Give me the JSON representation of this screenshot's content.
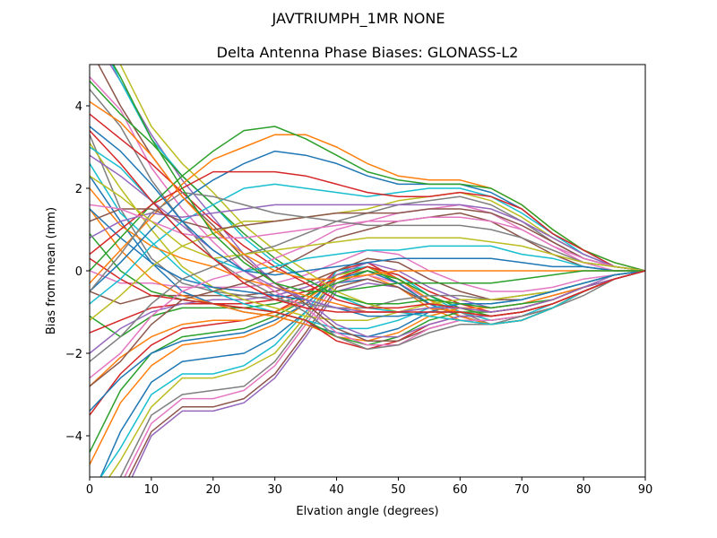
{
  "figure": {
    "suptitle": "JAVTRIUMPH_1MR  NONE"
  },
  "chart_data": {
    "type": "line",
    "title": "Delta Antenna Phase Biases: GLONASS-L2",
    "xlabel": "Elvation angle (degrees)",
    "ylabel": "Bias from mean (mm)",
    "xlim": [
      0,
      90
    ],
    "ylim": [
      -5,
      5
    ],
    "xticks": [
      0,
      10,
      20,
      30,
      40,
      50,
      60,
      70,
      80,
      90
    ],
    "yticks": [
      -4,
      -2,
      0,
      2,
      4
    ],
    "xtick_labels": [
      "0",
      "10",
      "20",
      "30",
      "40",
      "50",
      "60",
      "70",
      "80",
      "90"
    ],
    "ytick_labels": [
      "−4",
      "−2",
      "0",
      "2",
      "4"
    ],
    "grid": false,
    "legend": "none",
    "x": [
      0,
      5,
      10,
      15,
      20,
      25,
      30,
      35,
      40,
      45,
      50,
      55,
      60,
      65,
      70,
      75,
      80,
      85,
      90
    ],
    "colors": [
      "#1f77b4",
      "#ff7f0e",
      "#2ca02c",
      "#d62728",
      "#9467bd",
      "#8c564b",
      "#e377c2",
      "#7f7f7f",
      "#bcbd22",
      "#17becf"
    ],
    "series": [
      {
        "values": [
          -5.6,
          -3.9,
          -2.7,
          -2.2,
          -2.1,
          -2.0,
          -1.6,
          -1.0,
          -0.3,
          -0.2,
          -0.4,
          -0.8,
          -1.1,
          -1.3,
          -1.2,
          -0.9,
          -0.5,
          -0.2,
          0
        ]
      },
      {
        "values": [
          -4.7,
          -3.2,
          -2.3,
          -1.8,
          -1.7,
          -1.6,
          -1.3,
          -0.8,
          -0.2,
          -0.1,
          -0.4,
          -0.9,
          -1.2,
          -1.3,
          -1.2,
          -0.9,
          -0.5,
          -0.2,
          0
        ]
      },
      {
        "values": [
          -4.4,
          -2.9,
          -2.0,
          -1.6,
          -1.5,
          -1.4,
          -1.1,
          -0.7,
          -0.1,
          0.1,
          -0.3,
          -0.8,
          -1.1,
          -1.3,
          -1.2,
          -0.9,
          -0.5,
          -0.2,
          0
        ]
      },
      {
        "values": [
          -3.5,
          -2.5,
          -1.8,
          -1.4,
          -1.3,
          -1.2,
          -1.0,
          -0.6,
          0.0,
          0.2,
          -0.2,
          -0.7,
          -1.1,
          -1.3,
          -1.2,
          -0.9,
          -0.5,
          -0.2,
          0
        ]
      },
      {
        "values": [
          -6.6,
          -5.6,
          -4.0,
          -3.4,
          -3.4,
          -3.2,
          -2.6,
          -1.6,
          -0.5,
          -0.3,
          -0.4,
          -0.8,
          -1.1,
          -1.3,
          -1.2,
          -0.9,
          -0.5,
          -0.2,
          0
        ]
      },
      {
        "values": [
          -6.4,
          -5.4,
          -3.9,
          -3.3,
          -3.3,
          -3.1,
          -2.5,
          -1.5,
          -0.4,
          -0.2,
          -0.4,
          -0.8,
          -1.1,
          -1.3,
          -1.2,
          -0.9,
          -0.5,
          -0.2,
          0
        ]
      },
      {
        "values": [
          -6.2,
          -5.2,
          -3.7,
          -3.1,
          -3.1,
          -2.9,
          -2.3,
          -1.3,
          -0.3,
          -0.1,
          -0.3,
          -0.7,
          -1.1,
          -1.3,
          -1.2,
          -0.9,
          -0.5,
          -0.2,
          0
        ]
      },
      {
        "values": [
          -6.0,
          -5.0,
          -3.5,
          -3.0,
          -2.9,
          -2.8,
          -2.2,
          -1.2,
          -0.2,
          0.0,
          -0.2,
          -0.7,
          -1.0,
          -1.3,
          -1.2,
          -0.9,
          -0.5,
          -0.2,
          0
        ]
      },
      {
        "values": [
          -5.7,
          -4.6,
          -3.3,
          -2.6,
          -2.6,
          -2.4,
          -2.0,
          -1.1,
          -0.1,
          0.0,
          -0.2,
          -0.7,
          -1.0,
          -1.2,
          -1.1,
          -0.9,
          -0.5,
          -0.2,
          0
        ]
      },
      {
        "values": [
          -5.4,
          -4.3,
          -3.0,
          -2.5,
          -2.5,
          -2.3,
          -1.8,
          -1.0,
          0.0,
          0.1,
          -0.1,
          -0.6,
          -1.0,
          -1.2,
          -1.1,
          -0.8,
          -0.5,
          -0.2,
          0
        ]
      },
      {
        "values": [
          -3.4,
          -2.6,
          -2.0,
          -1.7,
          -1.6,
          -1.5,
          -1.2,
          -0.8,
          -0.2,
          0.0,
          -0.3,
          -0.8,
          -1.1,
          -1.3,
          -1.2,
          -0.9,
          -0.5,
          -0.2,
          0
        ]
      },
      {
        "values": [
          -2.8,
          -2.1,
          -1.6,
          -1.3,
          -1.2,
          -1.2,
          -1.0,
          -0.7,
          -0.2,
          0.1,
          -0.2,
          -0.7,
          -1.1,
          -1.3,
          -1.2,
          -0.9,
          -0.5,
          -0.2,
          0
        ]
      },
      {
        "values": [
          -1.1,
          -1.6,
          -1.1,
          -0.9,
          -0.9,
          -0.9,
          -0.8,
          -0.6,
          -0.3,
          0.0,
          -0.2,
          -0.6,
          -0.9,
          -1.1,
          -1.0,
          -0.8,
          -0.5,
          -0.2,
          0
        ]
      },
      {
        "values": [
          -1.5,
          -1.2,
          -0.9,
          -0.8,
          -0.8,
          -0.8,
          -0.7,
          -0.5,
          -0.2,
          0.1,
          -0.1,
          -0.5,
          -0.8,
          -1.0,
          -0.9,
          -0.7,
          -0.4,
          -0.2,
          0
        ]
      },
      {
        "values": [
          -2.0,
          -1.4,
          -1.0,
          -0.8,
          -0.7,
          -0.7,
          -0.6,
          -0.4,
          -0.1,
          0.2,
          0.0,
          -0.4,
          -0.7,
          -0.9,
          -0.8,
          -0.6,
          -0.4,
          -0.1,
          0
        ]
      },
      {
        "values": [
          -0.5,
          -0.8,
          -0.6,
          -0.6,
          -0.6,
          -0.6,
          -0.5,
          -0.3,
          0.0,
          0.3,
          0.2,
          -0.2,
          -0.5,
          -0.7,
          -0.7,
          -0.5,
          -0.3,
          -0.1,
          0
        ]
      },
      {
        "values": [
          0.0,
          -0.3,
          -0.3,
          -0.4,
          -0.4,
          -0.4,
          -0.3,
          -0.1,
          0.2,
          0.5,
          0.4,
          0.0,
          -0.3,
          -0.5,
          -0.5,
          -0.4,
          -0.2,
          -0.1,
          0
        ]
      },
      {
        "values": [
          3.3,
          1.5,
          0.3,
          -0.3,
          -0.5,
          -0.6,
          -0.7,
          -0.8,
          -0.9,
          -0.9,
          -0.7,
          -0.6,
          -0.6,
          -0.7,
          -0.6,
          -0.5,
          -0.3,
          -0.1,
          0
        ]
      },
      {
        "values": [
          3.1,
          2.0,
          1.0,
          0.1,
          -0.4,
          -0.7,
          -0.9,
          -1.1,
          -1.2,
          -1.2,
          -1.0,
          -0.8,
          -0.7,
          -0.7,
          -0.6,
          -0.5,
          -0.3,
          -0.1,
          0
        ]
      },
      {
        "values": [
          2.6,
          1.4,
          0.7,
          0.0,
          -0.5,
          -0.8,
          -1.0,
          -1.2,
          -1.4,
          -1.4,
          -1.2,
          -0.9,
          -0.8,
          -0.8,
          -0.7,
          -0.5,
          -0.3,
          -0.1,
          0
        ]
      },
      {
        "values": [
          2.3,
          1.2,
          0.2,
          -0.5,
          -0.8,
          -1.0,
          -1.1,
          -1.3,
          -1.5,
          -1.6,
          -1.4,
          -1.0,
          -0.8,
          -0.8,
          -0.7,
          -0.5,
          -0.3,
          -0.1,
          0
        ]
      },
      {
        "values": [
          1.5,
          0.5,
          -0.2,
          -0.6,
          -0.8,
          -1.0,
          -1.1,
          -1.3,
          -1.6,
          -1.7,
          -1.5,
          -1.1,
          -0.9,
          -0.9,
          -0.8,
          -0.6,
          -0.4,
          -0.2,
          0
        ]
      },
      {
        "values": [
          0.9,
          0.0,
          -0.5,
          -0.7,
          -0.8,
          -0.9,
          -1.0,
          -1.2,
          -1.6,
          -1.8,
          -1.6,
          -1.2,
          -1.0,
          -1.0,
          -0.9,
          -0.7,
          -0.4,
          -0.2,
          0
        ]
      },
      {
        "values": [
          0.3,
          -0.2,
          -0.6,
          -0.7,
          -0.8,
          -0.9,
          -1.0,
          -1.2,
          -1.7,
          -1.9,
          -1.7,
          -1.3,
          -1.1,
          -1.1,
          -1.0,
          -0.8,
          -0.5,
          -0.2,
          0
        ]
      },
      {
        "values": [
          5.8,
          4.6,
          3.3,
          2.2,
          1.3,
          0.4,
          -0.3,
          -0.7,
          -1.3,
          -1.6,
          -1.6,
          -1.3,
          -1.1,
          -1.1,
          -1.0,
          -0.8,
          -0.5,
          -0.2,
          0
        ]
      },
      {
        "values": [
          5.4,
          4.0,
          2.8,
          1.8,
          1.1,
          0.3,
          -0.3,
          -0.8,
          -1.4,
          -1.7,
          -1.7,
          -1.4,
          -1.2,
          -1.2,
          -1.1,
          -0.9,
          -0.5,
          -0.2,
          0
        ]
      },
      {
        "values": [
          4.7,
          3.9,
          2.5,
          1.5,
          0.7,
          0.0,
          -0.5,
          -0.9,
          -1.5,
          -1.8,
          -1.8,
          -1.4,
          -1.2,
          -1.2,
          -1.1,
          -0.9,
          -0.5,
          -0.2,
          0
        ]
      },
      {
        "values": [
          4.4,
          3.5,
          2.2,
          1.2,
          0.3,
          -0.2,
          -0.6,
          -1.0,
          -1.6,
          -1.9,
          -1.8,
          -1.5,
          -1.3,
          -1.3,
          -1.1,
          -0.9,
          -0.6,
          -0.2,
          0
        ]
      },
      {
        "values": [
          6.5,
          5.0,
          3.5,
          2.6,
          1.9,
          1.1,
          0.5,
          0.0,
          -0.5,
          -0.8,
          -1.0,
          -1.1,
          -1.2,
          -1.3,
          -1.2,
          -0.9,
          -0.5,
          -0.2,
          0
        ]
      },
      {
        "values": [
          6.1,
          4.6,
          3.2,
          2.3,
          1.6,
          0.8,
          0.2,
          -0.2,
          -0.6,
          -0.9,
          -1.0,
          -1.1,
          -1.2,
          -1.3,
          -1.2,
          -0.9,
          -0.5,
          -0.2,
          0
        ]
      },
      {
        "values": [
          1.5,
          0.8,
          0.2,
          -0.2,
          -0.4,
          -0.5,
          -0.6,
          -0.7,
          -0.9,
          -1.1,
          -1.1,
          -1.0,
          -1.0,
          -1.1,
          -1.0,
          -0.8,
          -0.5,
          -0.2,
          0
        ]
      },
      {
        "values": [
          2.0,
          1.1,
          0.6,
          0.3,
          0.1,
          -0.2,
          -0.4,
          -0.6,
          -0.8,
          -1.0,
          -1.0,
          -0.9,
          -1.0,
          -1.1,
          -1.0,
          -0.8,
          -0.5,
          -0.2,
          0
        ]
      },
      {
        "values": [
          4.6,
          3.8,
          3.1,
          2.3,
          1.6,
          0.9,
          0.3,
          -0.2,
          -0.6,
          -0.8,
          -0.8,
          -0.7,
          -0.8,
          -0.9,
          -0.8,
          -0.7,
          -0.4,
          -0.2,
          0
        ]
      },
      {
        "values": [
          3.8,
          3.2,
          2.6,
          1.9,
          1.2,
          0.6,
          0.1,
          -0.3,
          -0.7,
          -0.9,
          -0.9,
          -0.8,
          -0.9,
          -1.0,
          -0.9,
          -0.7,
          -0.4,
          -0.2,
          0
        ]
      },
      {
        "values": [
          2.8,
          2.3,
          1.7,
          1.1,
          0.5,
          0.0,
          -0.4,
          -0.7,
          -0.9,
          -1.0,
          -1.0,
          -0.9,
          -0.9,
          -1.0,
          -0.9,
          -0.7,
          -0.4,
          -0.2,
          0
        ]
      },
      {
        "values": [
          -2.8,
          -2.2,
          -1.3,
          -0.7,
          -0.5,
          -0.3,
          0.0,
          0.4,
          0.8,
          1.0,
          1.2,
          1.3,
          1.4,
          1.2,
          0.8,
          0.4,
          0.1,
          0.0,
          0
        ]
      },
      {
        "values": [
          -2.6,
          -2.0,
          -1.1,
          -0.5,
          -0.2,
          0.0,
          0.3,
          0.6,
          1.0,
          1.2,
          1.4,
          1.5,
          1.6,
          1.4,
          1.0,
          0.6,
          0.2,
          0.0,
          0
        ]
      },
      {
        "values": [
          -2.2,
          -1.6,
          -0.8,
          -0.2,
          0.1,
          0.4,
          0.6,
          0.9,
          1.2,
          1.4,
          1.6,
          1.7,
          1.8,
          1.6,
          1.2,
          0.7,
          0.3,
          0.1,
          0
        ]
      },
      {
        "values": [
          -1.2,
          -0.6,
          0.1,
          0.6,
          0.9,
          1.2,
          1.2,
          1.3,
          1.4,
          1.5,
          1.7,
          1.8,
          1.9,
          1.7,
          1.3,
          0.8,
          0.4,
          0.1,
          0
        ]
      },
      {
        "values": [
          -0.8,
          -0.2,
          0.6,
          1.2,
          1.6,
          2.0,
          2.1,
          2.0,
          1.9,
          1.8,
          1.9,
          2.0,
          2.0,
          1.8,
          1.4,
          0.9,
          0.4,
          0.1,
          0
        ]
      },
      {
        "values": [
          -0.5,
          0.2,
          1.0,
          1.7,
          2.2,
          2.6,
          2.9,
          2.8,
          2.6,
          2.3,
          2.1,
          2.1,
          2.1,
          1.9,
          1.5,
          0.9,
          0.5,
          0.1,
          0
        ]
      },
      {
        "values": [
          -0.3,
          0.5,
          1.3,
          2.1,
          2.7,
          3.0,
          3.3,
          3.3,
          3.0,
          2.6,
          2.3,
          2.2,
          2.2,
          2.0,
          1.6,
          1.0,
          0.5,
          0.2,
          0
        ]
      },
      {
        "values": [
          0.0,
          0.8,
          1.6,
          2.3,
          2.9,
          3.4,
          3.5,
          3.2,
          2.8,
          2.4,
          2.2,
          2.1,
          2.1,
          2.0,
          1.6,
          1.0,
          0.5,
          0.2,
          0
        ]
      },
      {
        "values": [
          0.4,
          1.0,
          1.6,
          2.0,
          2.4,
          2.4,
          2.4,
          2.3,
          2.1,
          1.9,
          1.8,
          1.8,
          1.9,
          1.8,
          1.5,
          0.9,
          0.5,
          0.1,
          0
        ]
      },
      {
        "values": [
          0.8,
          1.2,
          1.4,
          1.3,
          1.4,
          1.5,
          1.6,
          1.6,
          1.6,
          1.6,
          1.6,
          1.6,
          1.6,
          1.5,
          1.2,
          0.8,
          0.4,
          0.1,
          0
        ]
      },
      {
        "values": [
          1.2,
          1.5,
          1.5,
          1.2,
          1.0,
          1.1,
          1.2,
          1.3,
          1.4,
          1.4,
          1.4,
          1.5,
          1.5,
          1.4,
          1.1,
          0.7,
          0.3,
          0.1,
          0
        ]
      },
      {
        "values": [
          1.6,
          1.5,
          1.2,
          0.9,
          0.8,
          0.8,
          0.9,
          1.0,
          1.1,
          1.2,
          1.2,
          1.3,
          1.3,
          1.2,
          1.0,
          0.6,
          0.3,
          0.1,
          0
        ]
      },
      {
        "values": [
          -0.5,
          0.4,
          1.4,
          1.9,
          1.8,
          1.6,
          1.4,
          1.3,
          1.2,
          1.1,
          1.1,
          1.1,
          1.1,
          1.0,
          0.8,
          0.5,
          0.2,
          0.1,
          0
        ]
      },
      {
        "values": [
          2.3,
          1.8,
          1.2,
          0.6,
          0.3,
          0.4,
          0.5,
          0.6,
          0.7,
          0.8,
          0.8,
          0.8,
          0.8,
          0.7,
          0.6,
          0.4,
          0.2,
          0.1,
          0
        ]
      },
      {
        "values": [
          3.0,
          2.5,
          1.7,
          0.9,
          0.3,
          0.0,
          0.1,
          0.3,
          0.4,
          0.5,
          0.5,
          0.6,
          0.6,
          0.6,
          0.4,
          0.3,
          0.1,
          0.0,
          0
        ]
      },
      {
        "values": [
          3.5,
          2.9,
          2.1,
          1.2,
          0.5,
          0.0,
          -0.1,
          0.0,
          0.1,
          0.2,
          0.3,
          0.3,
          0.3,
          0.3,
          0.2,
          0.1,
          0.1,
          0.0,
          0
        ]
      },
      {
        "values": [
          4.1,
          3.6,
          2.8,
          1.8,
          1.0,
          0.4,
          0.0,
          -0.2,
          -0.2,
          -0.1,
          0.0,
          0.0,
          0.0,
          0.0,
          0.0,
          0.0,
          0.0,
          0.0,
          0
        ]
      },
      {
        "values": [
          6.0,
          4.7,
          3.2,
          2.0,
          0.9,
          0.2,
          -0.3,
          -0.5,
          -0.5,
          -0.4,
          -0.3,
          -0.3,
          -0.3,
          -0.3,
          -0.2,
          -0.1,
          0.0,
          0.0,
          0
        ]
      },
      {
        "values": [
          3.4,
          2.6,
          1.7,
          0.9,
          0.3,
          -0.3,
          -0.7,
          -0.9,
          -1.0,
          -1.0,
          -1.0,
          -1.0,
          -1.0,
          -1.1,
          -1.0,
          -0.8,
          -0.5,
          -0.2,
          0
        ]
      }
    ]
  }
}
